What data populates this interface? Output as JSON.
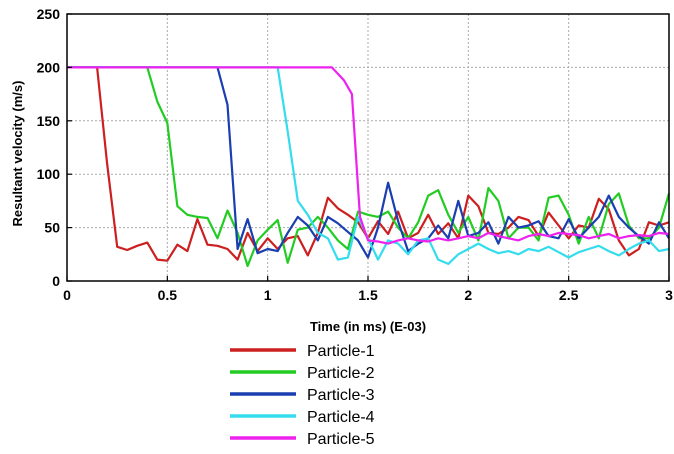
{
  "chart_data": {
    "type": "line",
    "xlabel": "Time (in ms) (E-03)",
    "ylabel": "Resultant velocity (m/s)",
    "xlim": [
      0,
      3
    ],
    "ylim": [
      0,
      250
    ],
    "x_ticks": [
      0,
      0.5,
      1,
      1.5,
      2,
      2.5,
      3
    ],
    "x_tick_labels": [
      "0",
      "0.5",
      "1",
      "1.5",
      "2",
      "2.5",
      "3"
    ],
    "y_ticks": [
      0,
      50,
      100,
      150,
      200,
      250
    ],
    "y_tick_labels": [
      "0",
      "50",
      "100",
      "150",
      "200",
      "250"
    ],
    "grid": true,
    "legend_position": "bottom",
    "series": [
      {
        "name": "Particle-1",
        "color": "#cc1f1f",
        "points": [
          [
            0,
            200
          ],
          [
            0.15,
            200
          ],
          [
            0.2,
            110
          ],
          [
            0.25,
            32
          ],
          [
            0.3,
            29
          ],
          [
            0.35,
            33
          ],
          [
            0.4,
            36
          ],
          [
            0.45,
            20
          ],
          [
            0.5,
            19
          ],
          [
            0.55,
            34
          ],
          [
            0.6,
            28
          ],
          [
            0.65,
            58
          ],
          [
            0.7,
            34
          ],
          [
            0.75,
            33
          ],
          [
            0.8,
            30
          ],
          [
            0.85,
            20
          ],
          [
            0.9,
            45
          ],
          [
            0.95,
            28
          ],
          [
            1.0,
            40
          ],
          [
            1.05,
            30
          ],
          [
            1.1,
            40
          ],
          [
            1.15,
            42
          ],
          [
            1.2,
            24
          ],
          [
            1.25,
            45
          ],
          [
            1.3,
            78
          ],
          [
            1.35,
            68
          ],
          [
            1.4,
            62
          ],
          [
            1.45,
            55
          ],
          [
            1.5,
            40
          ],
          [
            1.55,
            56
          ],
          [
            1.6,
            44
          ],
          [
            1.65,
            65
          ],
          [
            1.7,
            40
          ],
          [
            1.75,
            45
          ],
          [
            1.8,
            62
          ],
          [
            1.85,
            44
          ],
          [
            1.9,
            54
          ],
          [
            1.95,
            40
          ],
          [
            2.0,
            80
          ],
          [
            2.05,
            70
          ],
          [
            2.1,
            45
          ],
          [
            2.15,
            44
          ],
          [
            2.2,
            50
          ],
          [
            2.25,
            60
          ],
          [
            2.3,
            57
          ],
          [
            2.35,
            42
          ],
          [
            2.4,
            64
          ],
          [
            2.45,
            52
          ],
          [
            2.5,
            40
          ],
          [
            2.55,
            52
          ],
          [
            2.6,
            50
          ],
          [
            2.65,
            77
          ],
          [
            2.7,
            67
          ],
          [
            2.75,
            38
          ],
          [
            2.8,
            24
          ],
          [
            2.85,
            30
          ],
          [
            2.9,
            55
          ],
          [
            2.95,
            52
          ],
          [
            3.0,
            55
          ]
        ]
      },
      {
        "name": "Particle-2",
        "color": "#22cc22",
        "points": [
          [
            0,
            200
          ],
          [
            0.4,
            200
          ],
          [
            0.45,
            168
          ],
          [
            0.5,
            148
          ],
          [
            0.55,
            70
          ],
          [
            0.6,
            62
          ],
          [
            0.65,
            60
          ],
          [
            0.7,
            59
          ],
          [
            0.75,
            40
          ],
          [
            0.8,
            66
          ],
          [
            0.85,
            45
          ],
          [
            0.9,
            14
          ],
          [
            0.95,
            38
          ],
          [
            1.0,
            48
          ],
          [
            1.05,
            57
          ],
          [
            1.1,
            17
          ],
          [
            1.15,
            48
          ],
          [
            1.2,
            50
          ],
          [
            1.25,
            60
          ],
          [
            1.3,
            50
          ],
          [
            1.35,
            38
          ],
          [
            1.4,
            30
          ],
          [
            1.45,
            65
          ],
          [
            1.5,
            62
          ],
          [
            1.55,
            60
          ],
          [
            1.6,
            65
          ],
          [
            1.65,
            50
          ],
          [
            1.7,
            40
          ],
          [
            1.75,
            55
          ],
          [
            1.8,
            80
          ],
          [
            1.85,
            85
          ],
          [
            1.9,
            62
          ],
          [
            1.95,
            45
          ],
          [
            2.0,
            60
          ],
          [
            2.05,
            38
          ],
          [
            2.1,
            87
          ],
          [
            2.15,
            75
          ],
          [
            2.2,
            40
          ],
          [
            2.25,
            50
          ],
          [
            2.3,
            50
          ],
          [
            2.35,
            38
          ],
          [
            2.4,
            78
          ],
          [
            2.45,
            80
          ],
          [
            2.5,
            62
          ],
          [
            2.55,
            35
          ],
          [
            2.6,
            60
          ],
          [
            2.65,
            40
          ],
          [
            2.7,
            72
          ],
          [
            2.75,
            82
          ],
          [
            2.8,
            52
          ],
          [
            2.85,
            40
          ],
          [
            2.9,
            40
          ],
          [
            2.95,
            50
          ],
          [
            3.0,
            82
          ]
        ]
      },
      {
        "name": "Particle-3",
        "color": "#1a3fb0",
        "points": [
          [
            0,
            200
          ],
          [
            0.75,
            200
          ],
          [
            0.8,
            165
          ],
          [
            0.85,
            30
          ],
          [
            0.9,
            58
          ],
          [
            0.95,
            26
          ],
          [
            1.0,
            30
          ],
          [
            1.05,
            28
          ],
          [
            1.1,
            45
          ],
          [
            1.15,
            60
          ],
          [
            1.2,
            52
          ],
          [
            1.25,
            38
          ],
          [
            1.3,
            60
          ],
          [
            1.35,
            54
          ],
          [
            1.4,
            46
          ],
          [
            1.45,
            38
          ],
          [
            1.5,
            22
          ],
          [
            1.55,
            50
          ],
          [
            1.6,
            92
          ],
          [
            1.65,
            56
          ],
          [
            1.7,
            28
          ],
          [
            1.75,
            35
          ],
          [
            1.8,
            40
          ],
          [
            1.85,
            52
          ],
          [
            1.9,
            40
          ],
          [
            1.95,
            75
          ],
          [
            2.0,
            42
          ],
          [
            2.05,
            45
          ],
          [
            2.1,
            55
          ],
          [
            2.15,
            35
          ],
          [
            2.2,
            60
          ],
          [
            2.25,
            50
          ],
          [
            2.3,
            52
          ],
          [
            2.35,
            56
          ],
          [
            2.4,
            42
          ],
          [
            2.45,
            40
          ],
          [
            2.5,
            58
          ],
          [
            2.55,
            40
          ],
          [
            2.6,
            50
          ],
          [
            2.65,
            60
          ],
          [
            2.7,
            80
          ],
          [
            2.75,
            60
          ],
          [
            2.8,
            50
          ],
          [
            2.85,
            42
          ],
          [
            2.9,
            35
          ],
          [
            2.95,
            55
          ],
          [
            3.0,
            40
          ]
        ]
      },
      {
        "name": "Particle-4",
        "color": "#33ddee",
        "points": [
          [
            0,
            200
          ],
          [
            1.05,
            200
          ],
          [
            1.1,
            140
          ],
          [
            1.15,
            75
          ],
          [
            1.2,
            62
          ],
          [
            1.25,
            45
          ],
          [
            1.3,
            40
          ],
          [
            1.35,
            20
          ],
          [
            1.4,
            22
          ],
          [
            1.45,
            60
          ],
          [
            1.5,
            40
          ],
          [
            1.55,
            20
          ],
          [
            1.6,
            38
          ],
          [
            1.65,
            35
          ],
          [
            1.7,
            25
          ],
          [
            1.75,
            38
          ],
          [
            1.8,
            40
          ],
          [
            1.85,
            20
          ],
          [
            1.9,
            16
          ],
          [
            1.95,
            25
          ],
          [
            2.0,
            30
          ],
          [
            2.05,
            35
          ],
          [
            2.1,
            30
          ],
          [
            2.15,
            26
          ],
          [
            2.2,
            28
          ],
          [
            2.25,
            25
          ],
          [
            2.3,
            30
          ],
          [
            2.35,
            28
          ],
          [
            2.4,
            32
          ],
          [
            2.45,
            27
          ],
          [
            2.5,
            22
          ],
          [
            2.55,
            27
          ],
          [
            2.6,
            30
          ],
          [
            2.65,
            33
          ],
          [
            2.7,
            28
          ],
          [
            2.75,
            24
          ],
          [
            2.8,
            30
          ],
          [
            2.85,
            35
          ],
          [
            2.9,
            38
          ],
          [
            2.95,
            28
          ],
          [
            3.0,
            30
          ]
        ]
      },
      {
        "name": "Particle-5",
        "color": "#ee22ee",
        "points": [
          [
            0,
            200
          ],
          [
            1.32,
            200
          ],
          [
            1.38,
            188
          ],
          [
            1.42,
            175
          ],
          [
            1.46,
            60
          ],
          [
            1.5,
            38
          ],
          [
            1.55,
            37
          ],
          [
            1.6,
            35
          ],
          [
            1.65,
            38
          ],
          [
            1.7,
            40
          ],
          [
            1.75,
            38
          ],
          [
            1.8,
            37
          ],
          [
            1.85,
            40
          ],
          [
            1.9,
            38
          ],
          [
            1.95,
            40
          ],
          [
            2.0,
            42
          ],
          [
            2.05,
            40
          ],
          [
            2.1,
            45
          ],
          [
            2.15,
            42
          ],
          [
            2.2,
            40
          ],
          [
            2.25,
            38
          ],
          [
            2.3,
            42
          ],
          [
            2.35,
            44
          ],
          [
            2.4,
            42
          ],
          [
            2.45,
            45
          ],
          [
            2.5,
            44
          ],
          [
            2.55,
            43
          ],
          [
            2.6,
            40
          ],
          [
            2.65,
            42
          ],
          [
            2.7,
            44
          ],
          [
            2.75,
            40
          ],
          [
            2.8,
            42
          ],
          [
            2.85,
            43
          ],
          [
            2.9,
            42
          ],
          [
            2.95,
            45
          ],
          [
            3.0,
            44
          ]
        ]
      }
    ]
  }
}
